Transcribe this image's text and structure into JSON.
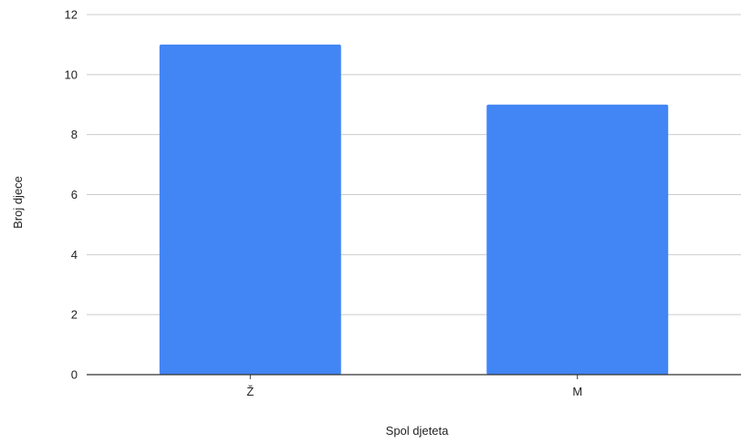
{
  "chart_data": {
    "type": "bar",
    "title": "",
    "xlabel": "Spol djeteta",
    "ylabel": "Broj djece",
    "categories": [
      "Ž",
      "M"
    ],
    "values": [
      11,
      9
    ],
    "ylim": [
      0,
      12
    ],
    "yticks": [
      0,
      2,
      4,
      6,
      8,
      10,
      12
    ],
    "grid": true,
    "legend": "none",
    "colors": {
      "bar": "#4285f4",
      "grid": "#cccccc",
      "axis": "#333333"
    }
  }
}
